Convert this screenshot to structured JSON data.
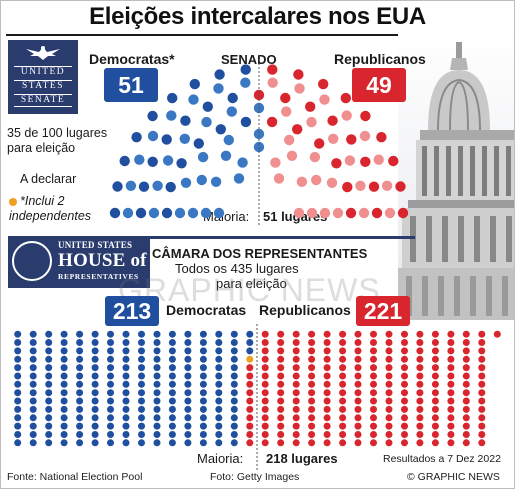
{
  "title": "Eleições intercalares nos EUA",
  "senate": {
    "logo_lines": [
      "UNITED",
      "STATES",
      "SENATE"
    ],
    "label": "SENADO",
    "eligible_text_1": "35 de 100 lugares",
    "eligible_text_2": "para eleição",
    "to_declare": "A declarar",
    "footnote_1": "*Inclui 2",
    "footnote_2": "independentes",
    "majority_label": "Maioria:",
    "majority_value": "51 lugares"
  },
  "house": {
    "logo_line1": "UNITED STATES",
    "logo_line2": "HOUSE of",
    "logo_line3": "REPRESENTATIVES",
    "label": "CÂMARA DOS REPRESENTANTES",
    "eligible_text_1": "Todos os 435 lugares",
    "eligible_text_2": "para eleição",
    "majority_label": "Maioria:",
    "majority_value": "218 lugares"
  },
  "watermark": "GRAPHIC NEWS",
  "footer": {
    "source": "Fonte: National Election Pool",
    "photo": "Foto: Getty Images",
    "results": "Resultados a 7 Dez 2022",
    "credit": "© GRAPHIC NEWS"
  },
  "colors": {
    "democrat_dark": "#1f4f9e",
    "democrat_light": "#3b78c4",
    "republican_dark": "#d9252e",
    "republican_light": "#f08f8f",
    "undeclared": "#f0a020",
    "navy": "#2a3b6e"
  },
  "chart_data": [
    {
      "type": "parliament",
      "chamber": "Senado",
      "total_seats": 100,
      "seats_up_for_election": 35,
      "majority": 51,
      "series": [
        {
          "name": "Democratas*",
          "seats": 51
        },
        {
          "name": "Republicanos",
          "seats": 49
        }
      ],
      "declared_seats": {
        "Democratas*": 51,
        "Republicanos": 49
      }
    },
    {
      "type": "waffle",
      "chamber": "Câmara dos Representantes",
      "total_seats": 435,
      "majority": 218,
      "series": [
        {
          "name": "Democratas",
          "seats": 213
        },
        {
          "name": "Republicanos",
          "seats": 221
        }
      ]
    }
  ]
}
